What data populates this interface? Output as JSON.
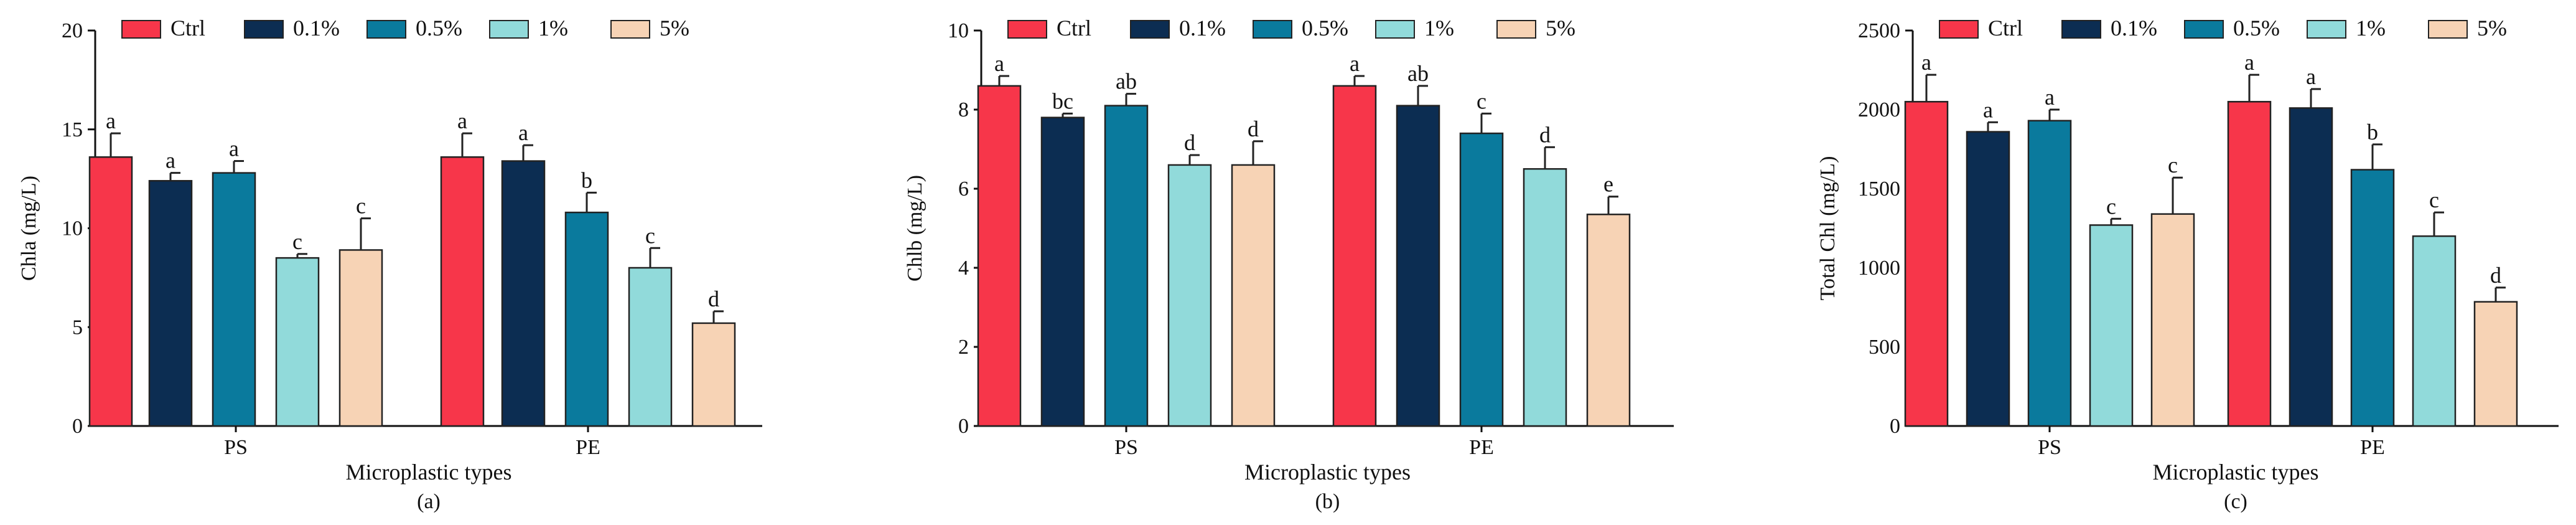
{
  "colors": {
    "Ctrl": "#F7364A",
    "0.1%": "#0C2D52",
    "0.5%": "#0A7A9D",
    "1%": "#91DADA",
    "5%": "#F7D3B5"
  },
  "chart_data": [
    {
      "type": "bar",
      "panel_label": "(a)",
      "xlabel": "Microplastic types",
      "ylabel": "Chla (mg/L)",
      "ylim": [
        0,
        20
      ],
      "yticks": [
        0,
        5,
        10,
        15,
        20
      ],
      "categories": [
        "PS",
        "PE"
      ],
      "legend_placement": "top",
      "series": [
        {
          "name": "Ctrl",
          "values": [
            13.6,
            13.6
          ],
          "errors": [
            1.2,
            1.2
          ],
          "letters": [
            "a",
            "a"
          ]
        },
        {
          "name": "0.1%",
          "values": [
            12.4,
            13.4
          ],
          "errors": [
            0.4,
            0.8
          ],
          "letters": [
            "a",
            "a"
          ]
        },
        {
          "name": "0.5%",
          "values": [
            12.8,
            10.8
          ],
          "errors": [
            0.6,
            1.0
          ],
          "letters": [
            "a",
            "b"
          ]
        },
        {
          "name": "1%",
          "values": [
            8.5,
            8.0
          ],
          "errors": [
            0.2,
            1.0
          ],
          "letters": [
            "c",
            "c"
          ]
        },
        {
          "name": "5%",
          "values": [
            8.9,
            5.2
          ],
          "errors": [
            1.6,
            0.6
          ],
          "letters": [
            "c",
            "d"
          ]
        }
      ]
    },
    {
      "type": "bar",
      "panel_label": "(b)",
      "xlabel": "Microplastic types",
      "ylabel": "Chlb (mg/L)",
      "ylim": [
        0,
        10
      ],
      "yticks": [
        0,
        2,
        4,
        6,
        8,
        10
      ],
      "categories": [
        "PS",
        "PE"
      ],
      "legend_placement": "top",
      "series": [
        {
          "name": "Ctrl",
          "values": [
            8.6,
            8.6
          ],
          "errors": [
            0.25,
            0.25
          ],
          "letters": [
            "a",
            "a"
          ]
        },
        {
          "name": "0.1%",
          "values": [
            7.8,
            8.1
          ],
          "errors": [
            0.1,
            0.5
          ],
          "letters": [
            "bc",
            "ab"
          ]
        },
        {
          "name": "0.5%",
          "values": [
            8.1,
            7.4
          ],
          "errors": [
            0.3,
            0.5
          ],
          "letters": [
            "ab",
            "c"
          ]
        },
        {
          "name": "1%",
          "values": [
            6.6,
            6.5
          ],
          "errors": [
            0.25,
            0.55
          ],
          "letters": [
            "d",
            "d"
          ]
        },
        {
          "name": "5%",
          "values": [
            6.6,
            5.35
          ],
          "errors": [
            0.6,
            0.45
          ],
          "letters": [
            "d",
            "e"
          ]
        }
      ]
    },
    {
      "type": "bar",
      "panel_label": "(c)",
      "xlabel": "Microplastic types",
      "ylabel": "Total Chl (mg/L)",
      "ylim": [
        0,
        2500
      ],
      "yticks": [
        0,
        500,
        1000,
        1500,
        2000,
        2500
      ],
      "categories": [
        "PS",
        "PE"
      ],
      "legend_placement": "top",
      "series": [
        {
          "name": "Ctrl",
          "values": [
            2050,
            2050
          ],
          "errors": [
            170,
            170
          ],
          "letters": [
            "a",
            "a"
          ]
        },
        {
          "name": "0.1%",
          "values": [
            1860,
            2010
          ],
          "errors": [
            60,
            120
          ],
          "letters": [
            "a",
            "a"
          ]
        },
        {
          "name": "0.5%",
          "values": [
            1930,
            1620
          ],
          "errors": [
            70,
            160
          ],
          "letters": [
            "a",
            "b"
          ]
        },
        {
          "name": "1%",
          "values": [
            1270,
            1200
          ],
          "errors": [
            40,
            150
          ],
          "letters": [
            "c",
            "c"
          ]
        },
        {
          "name": "5%",
          "values": [
            1340,
            785
          ],
          "errors": [
            230,
            90
          ],
          "letters": [
            "c",
            "d"
          ]
        }
      ]
    }
  ]
}
